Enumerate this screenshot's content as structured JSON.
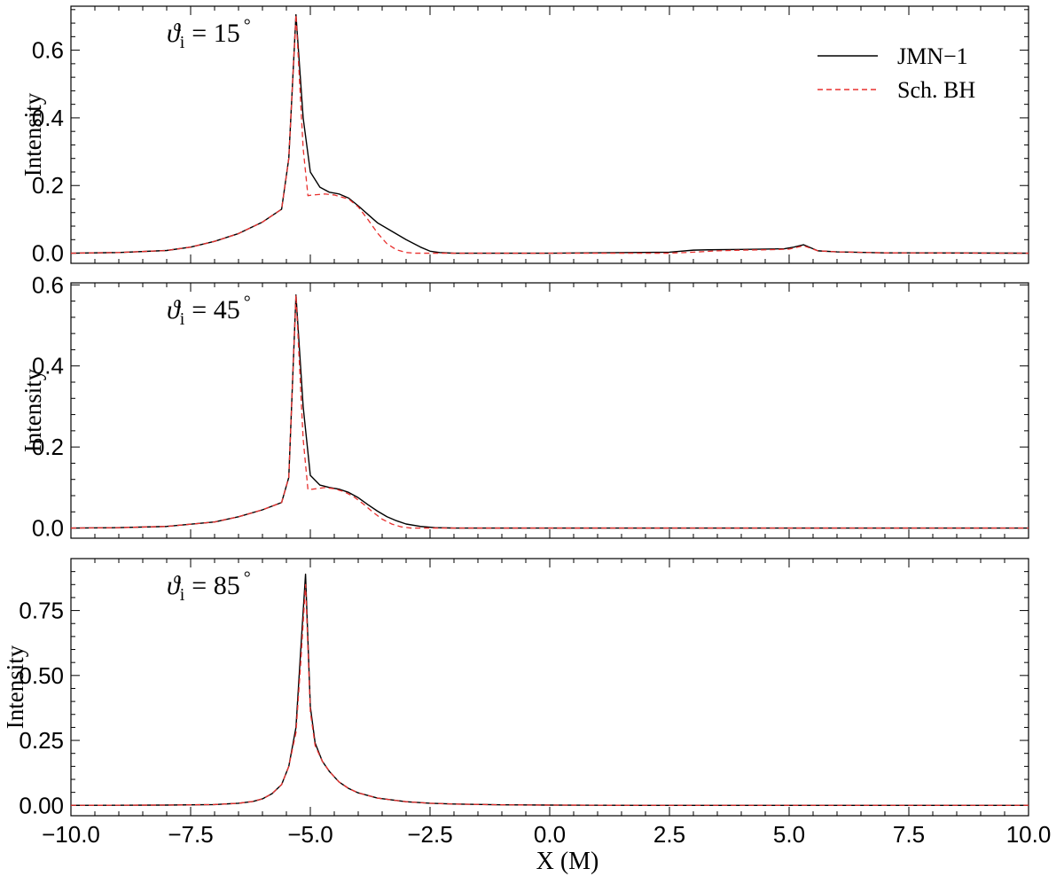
{
  "chart_data": {
    "type": "line",
    "xlabel": "X (M)",
    "xlim": [
      -10,
      10
    ],
    "x_ticks": [
      -10.0,
      -7.5,
      -5.0,
      -2.5,
      0.0,
      2.5,
      5.0,
      7.5,
      10.0
    ],
    "x_tick_labels": [
      "−10.0",
      "−7.5",
      "−5.0",
      "−2.5",
      "0.0",
      "2.5",
      "5.0",
      "7.5",
      "10.0"
    ],
    "legend": {
      "placement": "top-right",
      "entries": [
        {
          "label": "JMN−1",
          "color": "#000000",
          "style": "solid"
        },
        {
          "label": "Sch. BH",
          "color": "#e8302e",
          "style": "dashed"
        }
      ]
    },
    "panels": [
      {
        "annotation": {
          "symbol": "ϑ",
          "subscript": "i",
          "text": "= 15",
          "degree": "°"
        },
        "ylabel": "Intensity",
        "ylim": [
          -0.03,
          0.73
        ],
        "y_ticks": [
          0.0,
          0.2,
          0.4,
          0.6
        ],
        "y_tick_labels": [
          "0.0",
          "0.2",
          "0.4",
          "0.6"
        ],
        "series": [
          {
            "name": "JMN−1",
            "x": [
              -10,
              -9,
              -8,
              -7.5,
              -7,
              -6.5,
              -6,
              -5.6,
              -5.45,
              -5.3,
              -5.15,
              -5,
              -4.8,
              -4.6,
              -4.4,
              -4.2,
              -4,
              -3.8,
              -3.6,
              -3.3,
              -3,
              -2.7,
              -2.5,
              -2.3,
              -2,
              0,
              2.5,
              3,
              3.3,
              4,
              4.5,
              4.9,
              5.1,
              5.3,
              5.6,
              6,
              7,
              10
            ],
            "y": [
              0,
              0.002,
              0.008,
              0.018,
              0.035,
              0.058,
              0.092,
              0.13,
              0.28,
              0.705,
              0.4,
              0.24,
              0.195,
              0.18,
              0.175,
              0.163,
              0.14,
              0.115,
              0.09,
              0.065,
              0.04,
              0.018,
              0.006,
              0.002,
              0,
              0,
              0.003,
              0.009,
              0.01,
              0.011,
              0.012,
              0.013,
              0.018,
              0.025,
              0.007,
              0.004,
              0.001,
              0
            ]
          },
          {
            "name": "Sch. BH",
            "x": [
              -10,
              -9,
              -8,
              -7.5,
              -7,
              -6.5,
              -6,
              -5.6,
              -5.45,
              -5.3,
              -5.15,
              -5.05,
              -4.95,
              -4.7,
              -4.5,
              -4.2,
              -4,
              -3.8,
              -3.6,
              -3.4,
              -3.2,
              -3,
              -2.8,
              -2.5,
              0,
              2.5,
              3,
              3.5,
              4,
              4.5,
              5,
              5.3,
              5.6,
              6,
              7,
              10
            ],
            "y": [
              0,
              0.002,
              0.008,
              0.018,
              0.035,
              0.058,
              0.092,
              0.13,
              0.28,
              0.705,
              0.31,
              0.17,
              0.172,
              0.175,
              0.172,
              0.16,
              0.137,
              0.1,
              0.06,
              0.028,
              0.01,
              0.002,
              0,
              0,
              0,
              0,
              0.003,
              0.007,
              0.009,
              0.01,
              0.012,
              0.022,
              0.007,
              0.004,
              0.001,
              0
            ]
          }
        ]
      },
      {
        "annotation": {
          "symbol": "ϑ",
          "subscript": "i",
          "text": "= 45",
          "degree": "°"
        },
        "ylabel": "Intensity",
        "ylim": [
          -0.025,
          0.605
        ],
        "y_ticks": [
          0.0,
          0.2,
          0.4,
          0.6
        ],
        "y_tick_labels": [
          "0.0",
          "0.2",
          "0.4",
          "0.6"
        ],
        "series": [
          {
            "name": "JMN−1",
            "x": [
              -10,
              -9,
              -8,
              -7,
              -6.5,
              -6,
              -5.6,
              -5.45,
              -5.3,
              -5.15,
              -5,
              -4.8,
              -4.6,
              -4.4,
              -4.2,
              -4,
              -3.8,
              -3.6,
              -3.4,
              -3.2,
              -3,
              -2.7,
              -2.4,
              -2,
              0,
              10
            ],
            "y": [
              0,
              0.001,
              0.004,
              0.015,
              0.028,
              0.045,
              0.063,
              0.125,
              0.575,
              0.3,
              0.13,
              0.106,
              0.1,
              0.096,
              0.088,
              0.075,
              0.058,
              0.042,
              0.028,
              0.018,
              0.01,
              0.004,
              0.001,
              0,
              0,
              0
            ]
          },
          {
            "name": "Sch. BH",
            "x": [
              -10,
              -9,
              -8,
              -7,
              -6.5,
              -6,
              -5.6,
              -5.45,
              -5.3,
              -5.15,
              -5.05,
              -4.95,
              -4.7,
              -4.5,
              -4.3,
              -4.1,
              -3.9,
              -3.7,
              -3.5,
              -3.3,
              -3.1,
              -2.9,
              -2.7,
              -2.4,
              0,
              10
            ],
            "y": [
              0,
              0.001,
              0.004,
              0.015,
              0.028,
              0.045,
              0.063,
              0.125,
              0.575,
              0.22,
              0.095,
              0.096,
              0.1,
              0.097,
              0.09,
              0.078,
              0.06,
              0.04,
              0.022,
              0.01,
              0.003,
              0,
              0,
              0,
              0,
              0
            ]
          }
        ]
      },
      {
        "annotation": {
          "symbol": "ϑ",
          "subscript": "i",
          "text": "= 85",
          "degree": "°"
        },
        "ylabel": "Intensity",
        "ylim": [
          -0.04,
          0.95
        ],
        "y_ticks": [
          0.0,
          0.25,
          0.5,
          0.75
        ],
        "y_tick_labels": [
          "0.00",
          "0.25",
          "0.50",
          "0.75"
        ],
        "series": [
          {
            "name": "JMN−1",
            "x": [
              -10,
              -8,
              -7,
              -6.5,
              -6.2,
              -6,
              -5.8,
              -5.6,
              -5.45,
              -5.3,
              -5.2,
              -5.1,
              -5,
              -4.9,
              -4.75,
              -4.6,
              -4.4,
              -4.2,
              -4,
              -3.6,
              -3,
              -2.5,
              -2,
              -1,
              0,
              2,
              10
            ],
            "y": [
              0,
              0.001,
              0.003,
              0.008,
              0.015,
              0.025,
              0.045,
              0.08,
              0.15,
              0.3,
              0.6,
              0.89,
              0.38,
              0.24,
              0.17,
              0.13,
              0.09,
              0.065,
              0.048,
              0.028,
              0.014,
              0.008,
              0.005,
              0.002,
              0.001,
              0,
              0
            ]
          },
          {
            "name": "Sch. BH",
            "x": [
              -10,
              -8,
              -7,
              -6.5,
              -6.2,
              -6,
              -5.8,
              -5.6,
              -5.45,
              -5.3,
              -5.2,
              -5.1,
              -5,
              -4.9,
              -4.75,
              -4.6,
              -4.4,
              -4.2,
              -4,
              -3.6,
              -3,
              -2.5,
              -2,
              -1,
              0,
              2,
              10
            ],
            "y": [
              0,
              0.001,
              0.003,
              0.008,
              0.015,
              0.025,
              0.045,
              0.08,
              0.15,
              0.28,
              0.55,
              0.85,
              0.36,
              0.23,
              0.17,
              0.13,
              0.09,
              0.065,
              0.048,
              0.028,
              0.014,
              0.008,
              0.005,
              0.002,
              0.001,
              0,
              0
            ]
          }
        ]
      }
    ]
  }
}
